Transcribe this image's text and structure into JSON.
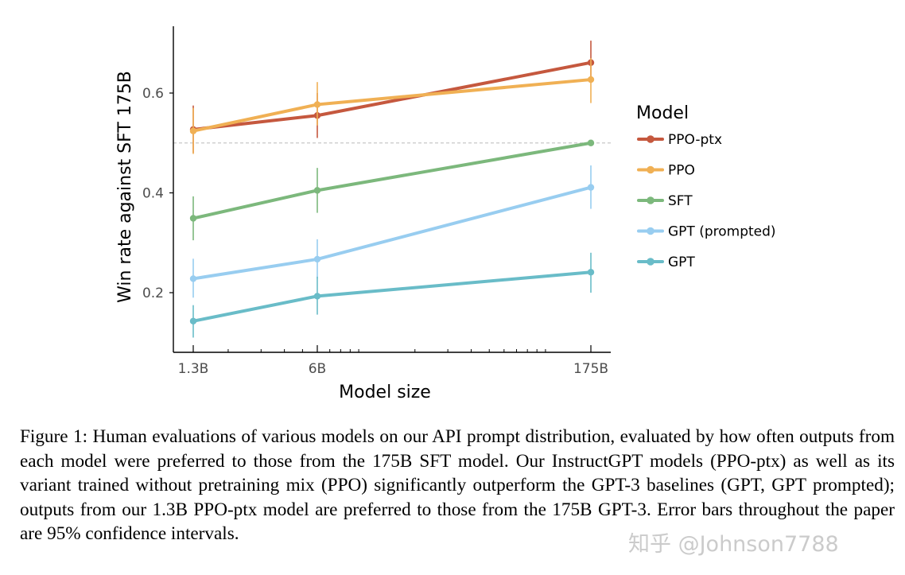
{
  "chart_data": {
    "type": "line",
    "xlabel": "Model size",
    "ylabel": "Win rate against SFT 175B",
    "x_scale": "log",
    "categories": [
      "1.3B",
      "6B",
      "175B"
    ],
    "x_values": [
      1.3,
      6,
      175
    ],
    "y_ticks": [
      0.2,
      0.4,
      0.6
    ],
    "ylim": [
      0.1,
      0.74
    ],
    "reference_line": 0.5,
    "grid": false,
    "legend_title": "Model",
    "legend_position": "right",
    "series": [
      {
        "name": "PPO-ptx",
        "color": "#c5583e",
        "values": [
          0.527,
          0.555,
          0.661
        ],
        "err_lo": [
          0.48,
          0.51,
          0.63
        ],
        "err_hi": [
          0.575,
          0.6,
          0.705
        ]
      },
      {
        "name": "PPO",
        "color": "#f0b054",
        "values": [
          0.524,
          0.577,
          0.627
        ],
        "err_lo": [
          0.478,
          0.535,
          0.58
        ],
        "err_hi": [
          0.57,
          0.622,
          0.67
        ]
      },
      {
        "name": "SFT",
        "color": "#7cb87c",
        "values": [
          0.349,
          0.405,
          0.5
        ],
        "err_lo": [
          0.305,
          0.36,
          0.5
        ],
        "err_hi": [
          0.393,
          0.45,
          0.5
        ]
      },
      {
        "name": "GPT (prompted)",
        "color": "#98cdf0",
        "values": [
          0.228,
          0.267,
          0.411
        ],
        "err_lo": [
          0.19,
          0.228,
          0.368
        ],
        "err_hi": [
          0.268,
          0.307,
          0.455
        ]
      },
      {
        "name": "GPT",
        "color": "#69bcc8",
        "values": [
          0.143,
          0.193,
          0.241
        ],
        "err_lo": [
          0.11,
          0.156,
          0.2
        ],
        "err_hi": [
          0.175,
          0.232,
          0.28
        ]
      }
    ]
  },
  "caption": "Figure 1: Human evaluations of various models on our API prompt distribution, evaluated by how often outputs from each model were preferred to those from the 175B SFT model. Our InstructGPT models (PPO-ptx) as well as its variant trained without pretraining mix (PPO) significantly outperform the GPT-3 baselines (GPT, GPT prompted); outputs from our 1.3B PPO-ptx model are preferred to those from the 175B GPT-3. Error bars throughout the paper are 95% confidence intervals.",
  "watermark": "知乎 @Johnson7788"
}
